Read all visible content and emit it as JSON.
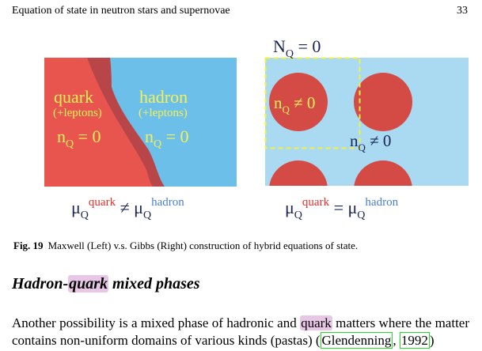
{
  "header": {
    "running_title": "Equation of state in neutron stars and supernovae",
    "page_number": "33"
  },
  "figure": {
    "left": {
      "quark_label": "quark",
      "quark_sub": "(+leptons)",
      "quark_nq": "n",
      "quark_nq_sub": "Q",
      "quark_nq_rel": " = 0",
      "hadron_label": "hadron",
      "hadron_sub": "(+leptons)",
      "hadron_nq": "n",
      "hadron_nq_sub": "Q",
      "hadron_nq_rel": " = 0",
      "equation": {
        "mu": "μ",
        "sub": "Q",
        "sup1": "quark",
        "op": " ≠ ",
        "sup2": "hadron"
      }
    },
    "right": {
      "total_label": "N",
      "total_sub": "Q",
      "total_rel": " = 0",
      "inner_nq": "n",
      "inner_nq_sub": "Q",
      "inner_nq_rel": " ≠ 0",
      "outer_nq": "n",
      "outer_nq_sub": "Q",
      "outer_nq_rel": " ≠ 0",
      "equation": {
        "mu": "μ",
        "sub": "Q",
        "sup1": "quark",
        "op": " = ",
        "sup2": "hadron"
      }
    },
    "colors": {
      "quark": "#e8554e",
      "quark_dark": "#b84548",
      "hadron": "#6bbfe9",
      "hadron_light": "#a9daf2",
      "droplet": "#d44a45",
      "label": "#f4f05a",
      "navy": "#1a2456",
      "sup_red": "#e8302a",
      "sup_blue": "#4a80c8",
      "dash": "#f4f040"
    }
  },
  "caption": {
    "label": "Fig. 19",
    "text": "Maxwell (Left) v.s. Gibbs (Right) construction of hybrid equations of state."
  },
  "section": {
    "title_pre": "Hadron-",
    "title_hl": "quark",
    "title_post": " mixed phases"
  },
  "body": {
    "pre": "Another possibility is a mixed phase of hadronic and ",
    "hl": "quark",
    "mid": " matters where the matter contains non-uniform domains of various kinds (pastas) (",
    "cite_author": "Glendenning",
    "sep": ", ",
    "cite_year": "1992",
    "post": ")"
  }
}
